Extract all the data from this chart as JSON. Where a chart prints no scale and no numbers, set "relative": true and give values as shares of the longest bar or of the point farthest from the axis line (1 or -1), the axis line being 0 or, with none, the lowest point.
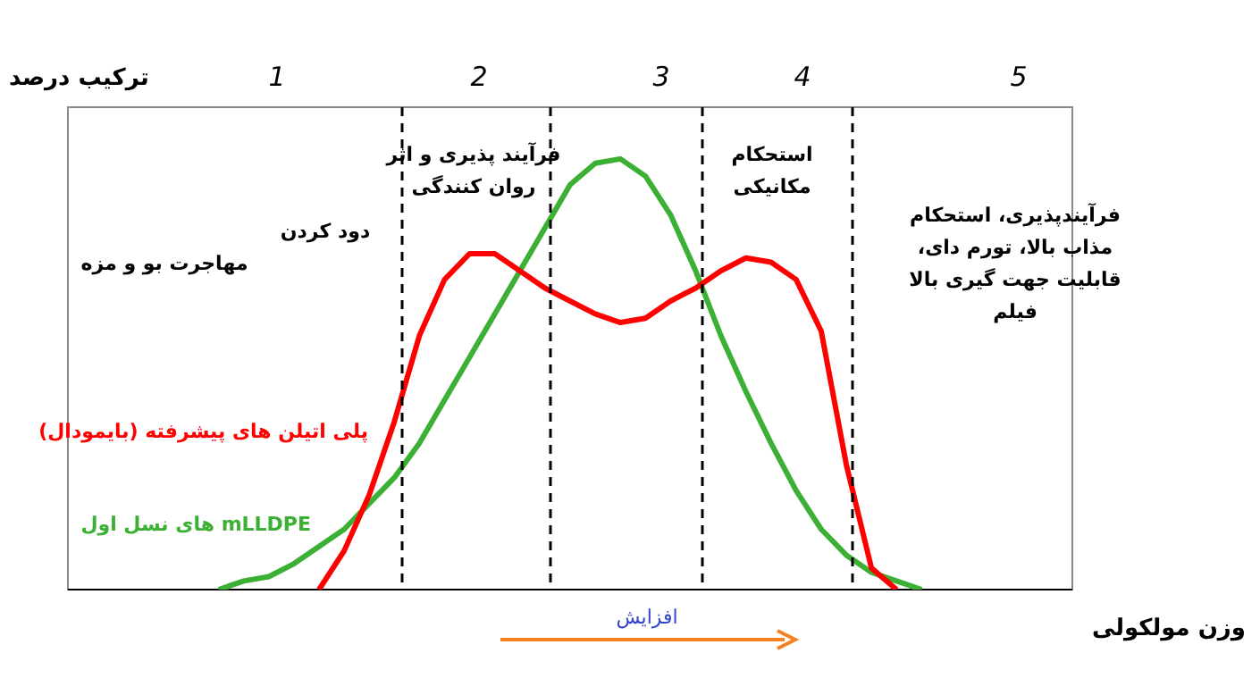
{
  "chart_data": {
    "type": "line",
    "relative": true,
    "ylabel": "ترکیب درصد",
    "xlabel": "وزن مولکولی",
    "legend": false,
    "marker": "none",
    "line_style": "solid",
    "categories": [
      null,
      null,
      null,
      null,
      null,
      null,
      null,
      null,
      null,
      null,
      null,
      null,
      null,
      null,
      null,
      null,
      null,
      null,
      null,
      null,
      null,
      null,
      null,
      null,
      null,
      null,
      null,
      null,
      null,
      null,
      null,
      null,
      null,
      null,
      null,
      null,
      null,
      null,
      null,
      null,
      null
    ],
    "series": [
      {
        "name": "پلی اتیلن های پیشرفته (بایمودال)",
        "color": "#ff0000",
        "values": [
          null,
          null,
          null,
          null,
          null,
          null,
          null,
          null,
          null,
          null,
          0,
          0.09,
          0.22,
          0.39,
          0.59,
          0.72,
          0.78,
          0.78,
          0.74,
          0.7,
          0.67,
          0.64,
          0.62,
          0.63,
          0.67,
          0.7,
          0.74,
          0.77,
          0.76,
          0.72,
          0.6,
          0.29,
          0.05,
          0,
          null,
          null,
          null,
          null,
          null,
          null,
          null
        ]
      },
      {
        "name": "mLLDPE های نسل اول",
        "color": "#3cb034",
        "values": [
          null,
          null,
          null,
          null,
          null,
          null,
          0,
          0.02,
          0.03,
          0.06,
          0.1,
          0.14,
          0.2,
          0.26,
          0.34,
          0.44,
          0.54,
          0.64,
          0.74,
          0.84,
          0.94,
          0.99,
          1,
          0.96,
          0.87,
          0.74,
          0.59,
          0.46,
          0.34,
          0.23,
          0.14,
          0.08,
          0.04,
          0.02,
          0,
          null,
          null,
          null,
          null,
          null,
          null
        ]
      }
    ],
    "annotations": [
      "1",
      "2",
      "3",
      "4",
      "5",
      "مهاجرت بو و مزه",
      "دود کردن",
      "فرآیند پذیری و اثر روان کنندگی",
      "استحکام مکانیکی",
      "فرآیندپذیری، استحکام مذاب بالا، تورم دای، قابلیت جهت گیری بالا فیلم",
      "افزایش"
    ]
  }
}
